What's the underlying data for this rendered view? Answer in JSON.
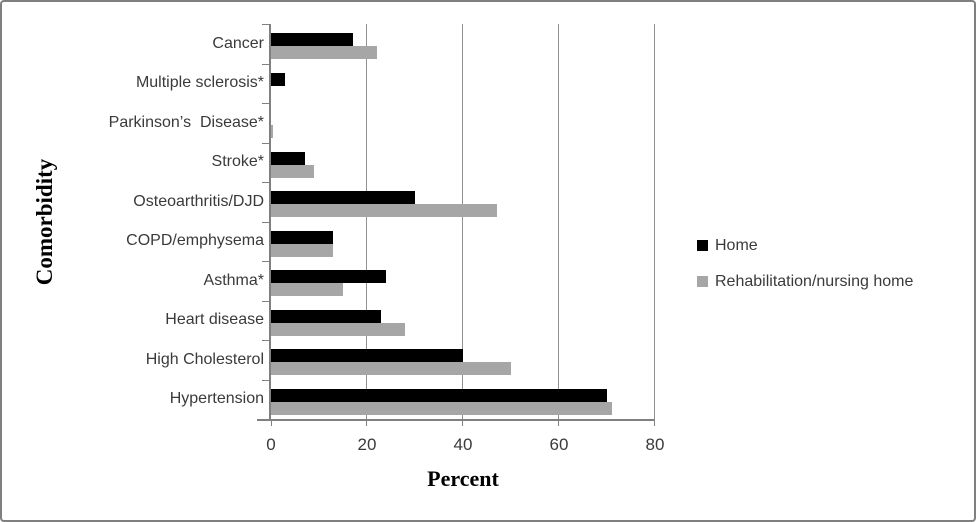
{
  "chart_data": {
    "type": "bar",
    "orientation": "horizontal",
    "title": "",
    "xlabel": "Percent",
    "ylabel": "Comorbidity",
    "categories": [
      "Cancer",
      "Multiple sclerosis*",
      "Parkinson’s  Disease*",
      "Stroke*",
      "Osteoarthritis/DJD",
      "COPD/emphysema",
      "Asthma*",
      "Heart disease",
      "High Cholesterol",
      "Hypertension"
    ],
    "categories_order_note": "listed top to bottom as displayed",
    "series": [
      {
        "name": "Home",
        "color": "#000000",
        "values": [
          17,
          3,
          0,
          7,
          30,
          13,
          24,
          23,
          40,
          70
        ]
      },
      {
        "name": "Rehabilitation/nursing home",
        "color": "#a6a6a6",
        "values": [
          22,
          0,
          0.5,
          9,
          47,
          13,
          15,
          28,
          50,
          71
        ]
      }
    ],
    "x_axis": {
      "min": 0,
      "max": 80,
      "ticks": [
        0,
        20,
        40,
        60,
        80
      ]
    },
    "grid": "vertical gridlines at each x tick",
    "legend_position": "right"
  },
  "colors": {
    "gridline": "#919191",
    "axis": "#808080",
    "text": "#3a3a3a",
    "frame_border": "#7f7f7f",
    "background": "#ffffff"
  }
}
